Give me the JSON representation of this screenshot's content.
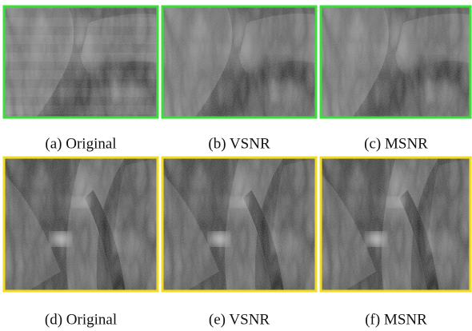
{
  "panels": [
    {
      "caption": "(a) Original"
    },
    {
      "caption": "(b) VSNR"
    },
    {
      "caption": "(c) MSNR"
    },
    {
      "caption": "(d) Original"
    },
    {
      "caption": "(e) VSNR"
    },
    {
      "caption": "(f) MSNR"
    }
  ]
}
